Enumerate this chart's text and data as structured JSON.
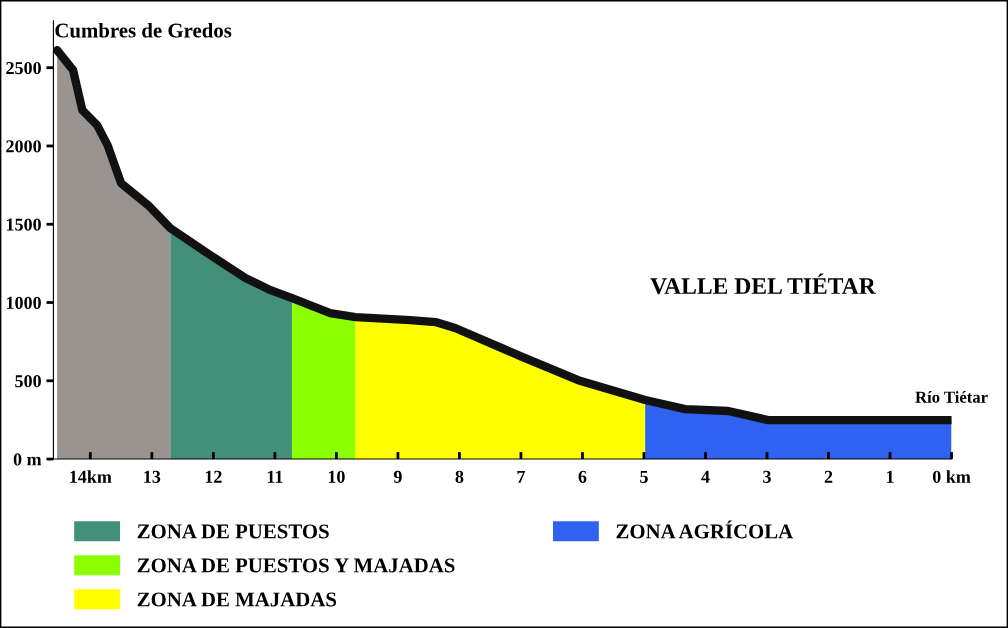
{
  "chart_data": {
    "type": "area",
    "annotations": [
      {
        "text": "Cumbres de Gredos",
        "x": 14.54,
        "y": 2612
      },
      "VALLE DEL TIÉTAR",
      {
        "text": "Río Tiétar",
        "x": 0,
        "y": 249
      }
    ],
    "xlim": [
      14.6,
      0
    ],
    "ylim": [
      0,
      2800
    ],
    "xticks": [
      {
        "value": 14,
        "label": "14km"
      },
      13,
      12,
      11,
      10,
      9,
      8,
      7,
      6,
      5,
      4,
      3,
      2,
      1,
      {
        "value": 0,
        "label": "0 km"
      }
    ],
    "yticks": [
      {
        "value": 0,
        "label": "0 m"
      },
      500,
      1000,
      1500,
      2000,
      2500
    ],
    "series": [
      {
        "color": "#9a9490",
        "x": [
          14.54,
          14.28,
          14.13,
          13.89,
          13.72,
          13.5,
          13.06,
          12.7
        ],
        "values": [
          2612,
          2484,
          2229,
          2133,
          2005,
          1762,
          1622,
          1475
        ]
      },
      {
        "name": "ZONA DE PUESTOS",
        "color": "#42907a",
        "x": [
          12.7,
          12.05,
          11.48,
          11.07,
          10.72
        ],
        "values": [
          1475,
          1303,
          1156,
          1079,
          1028
        ]
      },
      {
        "name": "ZONA DE PUESTOS Y MAJADAS",
        "color": "#8cff00",
        "x": [
          10.72,
          10.1,
          9.69
        ],
        "values": [
          1028,
          932,
          907
        ]
      },
      {
        "name": "ZONA DE MAJADAS",
        "color": "#ffff00",
        "x": [
          9.69,
          8.8,
          8.39,
          8.07,
          7.01,
          6.07,
          4.98
        ],
        "values": [
          907,
          888,
          875,
          837,
          658,
          504,
          377
        ]
      },
      {
        "name": "ZONA AGRÍCOLA",
        "color": "#2f62f0",
        "x": [
          4.98,
          4.33,
          3.63,
          2.98,
          0
        ],
        "values": [
          377,
          319,
          307,
          249,
          249
        ]
      },
      {
        "type": "line",
        "color": "#111111",
        "x": [
          14.54,
          14.28,
          14.13,
          13.89,
          13.72,
          13.5,
          13.06,
          12.7,
          12.05,
          11.48,
          11.07,
          10.72,
          10.1,
          9.69,
          8.8,
          8.39,
          8.07,
          7.01,
          6.07,
          4.98,
          4.33,
          3.63,
          2.98,
          0
        ],
        "values": [
          2612,
          2484,
          2229,
          2133,
          2005,
          1762,
          1622,
          1475,
          1303,
          1156,
          1079,
          1028,
          932,
          907,
          888,
          875,
          837,
          658,
          504,
          377,
          319,
          307,
          249,
          249
        ]
      }
    ],
    "legend": "bottom",
    "grid": false
  }
}
